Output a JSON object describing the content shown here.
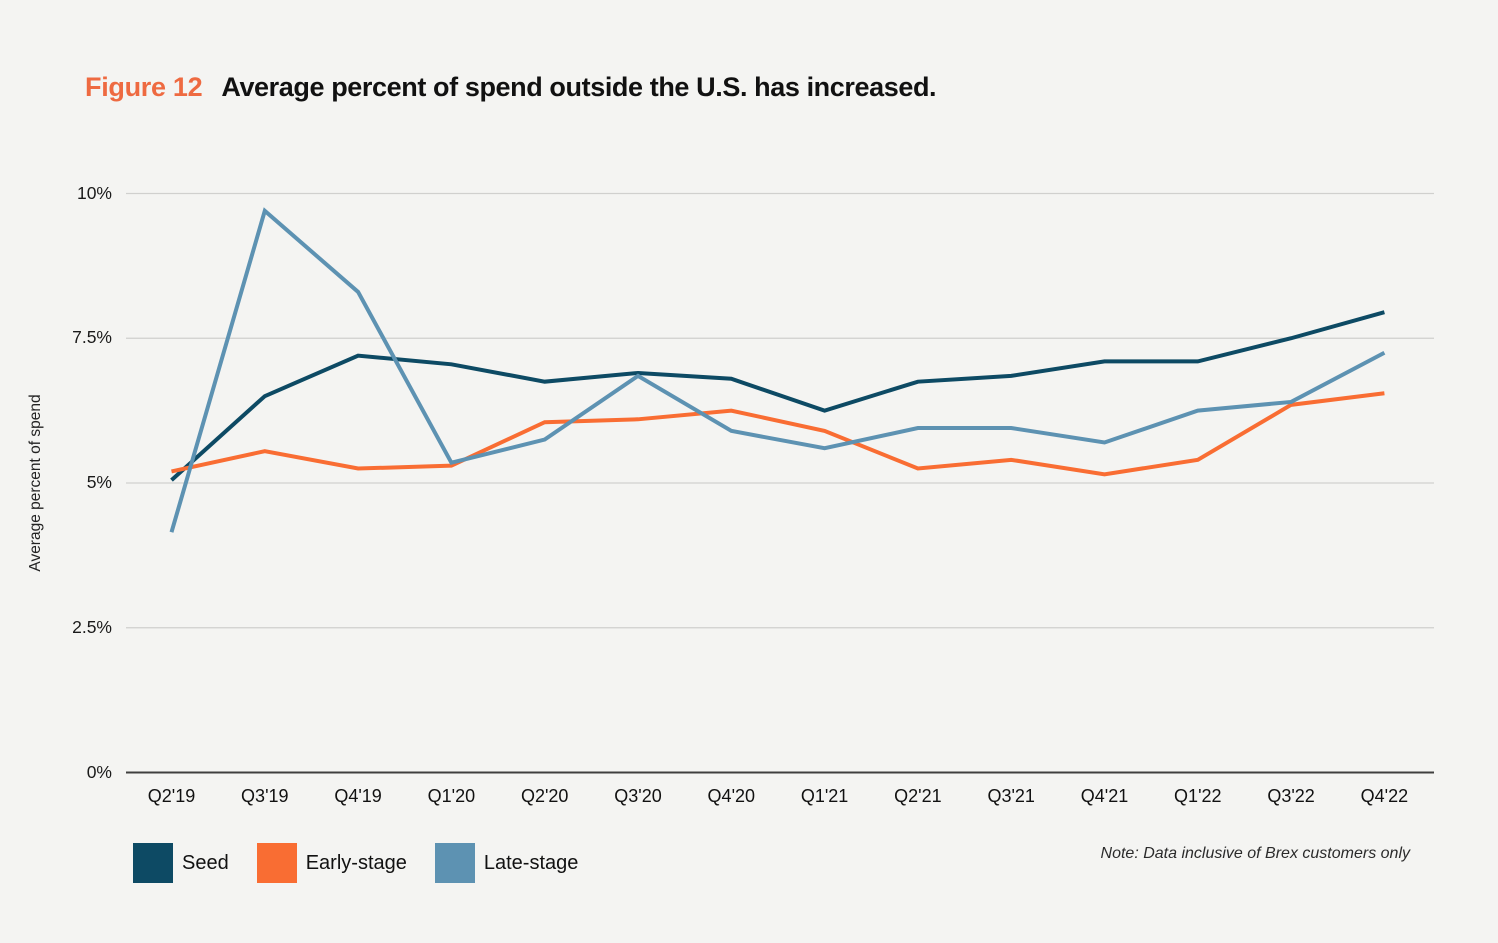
{
  "title": {
    "figure_label": "Figure 12",
    "text": "Average percent of spend outside the U.S. has increased."
  },
  "note": "Note: Data inclusive of Brex customers only",
  "y_axis": {
    "label": "Average percent of spend",
    "ticks": [
      "0%",
      "2.5%",
      "5%",
      "7.5%",
      "10%"
    ],
    "tick_values": [
      0,
      2.5,
      5,
      7.5,
      10
    ]
  },
  "colors": {
    "background": "#f4f4f2",
    "gridline": "#d0d0ce",
    "axis_line": "#3f3f3f",
    "figure_label": "#ee6a41",
    "title_text": "#111111",
    "seed": "#0d4a64",
    "early_stage": "#f96d33",
    "late_stage": "#5d92b2"
  },
  "chart_data": {
    "type": "line",
    "title": "Average percent of spend outside the U.S. has increased.",
    "xlabel": "",
    "ylabel": "Average percent of spend",
    "ylim": [
      0,
      10
    ],
    "grid": "horizontal",
    "legend_position": "bottom-left",
    "categories": [
      "Q2'19",
      "Q3'19",
      "Q4'19",
      "Q1'20",
      "Q2'20",
      "Q3'20",
      "Q4'20",
      "Q1'21",
      "Q2'21",
      "Q3'21",
      "Q4'21",
      "Q1'22",
      "Q3'22",
      "Q4'22"
    ],
    "series": [
      {
        "name": "Seed",
        "color": "#0d4a64",
        "values": [
          5.05,
          6.5,
          7.2,
          7.05,
          6.75,
          6.9,
          6.8,
          6.25,
          6.75,
          6.85,
          7.1,
          7.1,
          7.5,
          7.95
        ]
      },
      {
        "name": "Early-stage",
        "color": "#f96d33",
        "values": [
          5.2,
          5.55,
          5.25,
          5.3,
          6.05,
          6.1,
          6.25,
          5.9,
          5.25,
          5.4,
          5.15,
          5.4,
          6.35,
          6.55
        ]
      },
      {
        "name": "Late-stage",
        "color": "#5d92b2",
        "values": [
          4.15,
          9.7,
          8.3,
          5.35,
          5.75,
          6.85,
          5.9,
          5.6,
          5.95,
          5.95,
          5.7,
          6.25,
          6.4,
          7.25
        ]
      }
    ]
  }
}
